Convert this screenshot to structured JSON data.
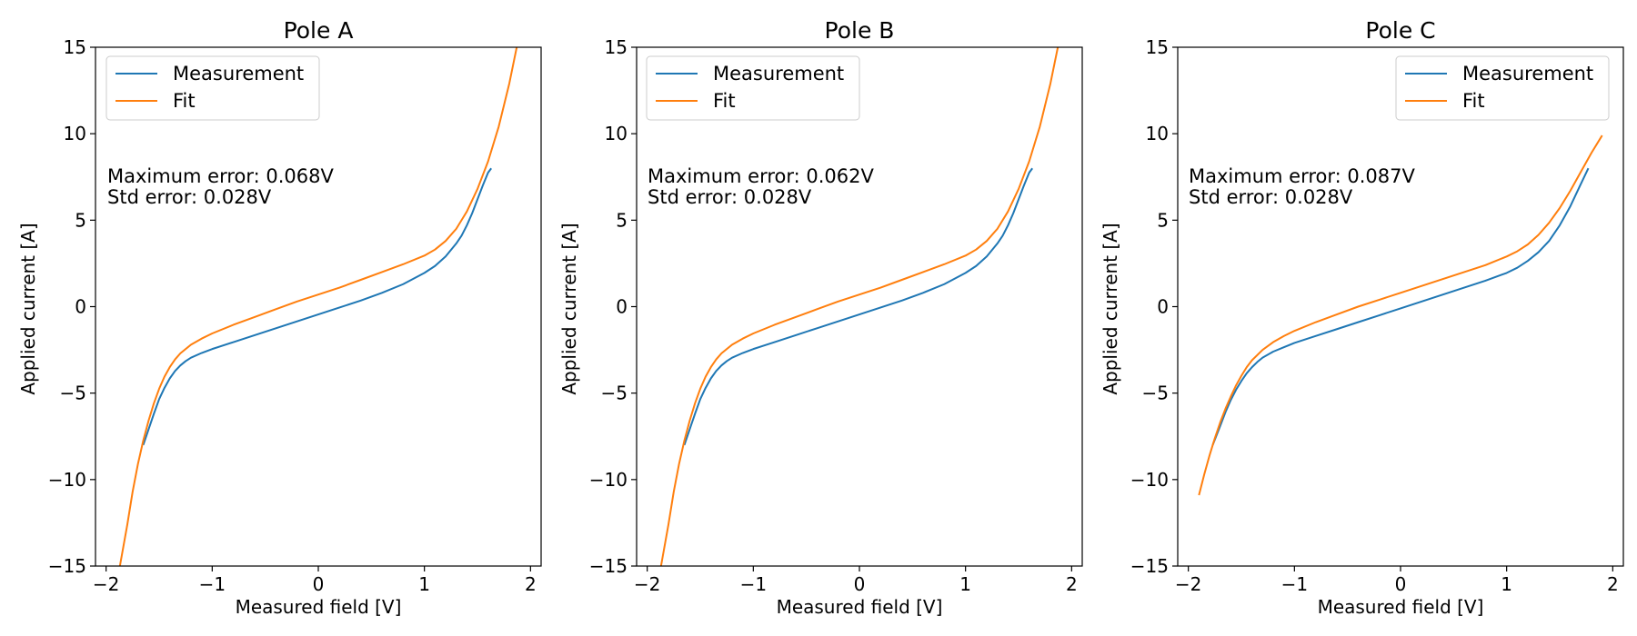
{
  "colors": {
    "measurement": "#1f77b4",
    "fit": "#ff7f0e",
    "axes": "#000000",
    "legend_border": "#cccccc",
    "background": "#ffffff"
  },
  "chart_data": [
    {
      "type": "line",
      "title": "Pole A",
      "xlabel": "Measured field [V]",
      "ylabel": "Applied current [A]",
      "xlim": [
        -2.1,
        2.1
      ],
      "ylim": [
        -15,
        15
      ],
      "xticks": [
        -2,
        -1,
        0,
        1,
        2
      ],
      "yticks": [
        -15,
        -10,
        -5,
        0,
        5,
        10,
        15
      ],
      "xtick_labels": [
        "−2",
        "−1",
        "0",
        "1",
        "2"
      ],
      "ytick_labels": [
        "−15",
        "−10",
        "−5",
        "0",
        "5",
        "10",
        "15"
      ],
      "grid": false,
      "legend_position": "upper left",
      "annotation": [
        "Maximum error: 0.068V",
        "Std error: 0.028V"
      ],
      "series": [
        {
          "name": "Measurement",
          "color": "#1f77b4",
          "x": [
            -1.65,
            -1.6,
            -1.55,
            -1.5,
            -1.45,
            -1.4,
            -1.35,
            -1.3,
            -1.25,
            -1.2,
            -1.1,
            -1.0,
            -0.8,
            -0.6,
            -0.4,
            -0.2,
            0.0,
            0.2,
            0.4,
            0.6,
            0.8,
            1.0,
            1.1,
            1.2,
            1.3,
            1.35,
            1.4,
            1.45,
            1.5,
            1.55,
            1.6,
            1.63
          ],
          "y": [
            -8.0,
            -7.1,
            -6.2,
            -5.35,
            -4.7,
            -4.15,
            -3.72,
            -3.4,
            -3.15,
            -2.95,
            -2.68,
            -2.45,
            -2.05,
            -1.65,
            -1.25,
            -0.85,
            -0.45,
            -0.05,
            0.35,
            0.8,
            1.3,
            1.95,
            2.35,
            2.9,
            3.65,
            4.1,
            4.7,
            5.4,
            6.2,
            7.0,
            7.75,
            8.0
          ]
        },
        {
          "name": "Fit",
          "color": "#ff7f0e",
          "x": [
            -1.87,
            -1.8,
            -1.75,
            -1.7,
            -1.65,
            -1.6,
            -1.55,
            -1.5,
            -1.45,
            -1.4,
            -1.35,
            -1.3,
            -1.2,
            -1.1,
            -1.0,
            -0.8,
            -0.6,
            -0.4,
            -0.2,
            0.0,
            0.2,
            0.4,
            0.6,
            0.8,
            1.0,
            1.1,
            1.2,
            1.3,
            1.4,
            1.5,
            1.6,
            1.7,
            1.8,
            1.87
          ],
          "y": [
            -15.0,
            -12.6,
            -10.7,
            -9.1,
            -7.75,
            -6.6,
            -5.6,
            -4.75,
            -4.05,
            -3.5,
            -3.05,
            -2.7,
            -2.2,
            -1.85,
            -1.55,
            -1.05,
            -0.6,
            -0.15,
            0.3,
            0.7,
            1.1,
            1.55,
            2.0,
            2.45,
            2.95,
            3.3,
            3.8,
            4.5,
            5.5,
            6.8,
            8.4,
            10.4,
            12.9,
            15.0
          ]
        }
      ]
    },
    {
      "type": "line",
      "title": "Pole B",
      "xlabel": "Measured field [V]",
      "ylabel": "Applied current [A]",
      "xlim": [
        -2.1,
        2.1
      ],
      "ylim": [
        -15,
        15
      ],
      "xticks": [
        -2,
        -1,
        0,
        1,
        2
      ],
      "yticks": [
        -15,
        -10,
        -5,
        0,
        5,
        10,
        15
      ],
      "xtick_labels": [
        "−2",
        "−1",
        "0",
        "1",
        "2"
      ],
      "ytick_labels": [
        "−15",
        "−10",
        "−5",
        "0",
        "5",
        "10",
        "15"
      ],
      "grid": false,
      "legend_position": "upper left",
      "annotation": [
        "Maximum error: 0.062V",
        "Std error: 0.028V"
      ],
      "series": [
        {
          "name": "Measurement",
          "color": "#1f77b4",
          "x": [
            -1.65,
            -1.6,
            -1.55,
            -1.5,
            -1.45,
            -1.4,
            -1.35,
            -1.3,
            -1.25,
            -1.2,
            -1.1,
            -1.0,
            -0.8,
            -0.6,
            -0.4,
            -0.2,
            0.0,
            0.2,
            0.4,
            0.6,
            0.8,
            1.0,
            1.1,
            1.2,
            1.3,
            1.35,
            1.4,
            1.45,
            1.5,
            1.55,
            1.6,
            1.63
          ],
          "y": [
            -8.0,
            -7.1,
            -6.2,
            -5.35,
            -4.7,
            -4.15,
            -3.72,
            -3.4,
            -3.15,
            -2.95,
            -2.68,
            -2.45,
            -2.05,
            -1.65,
            -1.25,
            -0.85,
            -0.45,
            -0.05,
            0.35,
            0.8,
            1.3,
            1.95,
            2.35,
            2.9,
            3.65,
            4.1,
            4.7,
            5.4,
            6.2,
            7.0,
            7.75,
            8.0
          ]
        },
        {
          "name": "Fit",
          "color": "#ff7f0e",
          "x": [
            -1.87,
            -1.8,
            -1.75,
            -1.7,
            -1.65,
            -1.6,
            -1.55,
            -1.5,
            -1.45,
            -1.4,
            -1.35,
            -1.3,
            -1.2,
            -1.1,
            -1.0,
            -0.8,
            -0.6,
            -0.4,
            -0.2,
            0.0,
            0.2,
            0.4,
            0.6,
            0.8,
            1.0,
            1.1,
            1.2,
            1.3,
            1.4,
            1.5,
            1.6,
            1.7,
            1.8,
            1.87
          ],
          "y": [
            -15.0,
            -12.6,
            -10.7,
            -9.1,
            -7.75,
            -6.6,
            -5.6,
            -4.75,
            -4.05,
            -3.5,
            -3.05,
            -2.7,
            -2.2,
            -1.85,
            -1.55,
            -1.05,
            -0.6,
            -0.15,
            0.3,
            0.7,
            1.1,
            1.55,
            2.0,
            2.45,
            2.95,
            3.3,
            3.8,
            4.5,
            5.5,
            6.8,
            8.4,
            10.4,
            12.9,
            15.0
          ]
        }
      ]
    },
    {
      "type": "line",
      "title": "Pole C",
      "xlabel": "Measured field [V]",
      "ylabel": "Applied current [A]",
      "xlim": [
        -2.1,
        2.1
      ],
      "ylim": [
        -15,
        15
      ],
      "xticks": [
        -2,
        -1,
        0,
        1,
        2
      ],
      "yticks": [
        -15,
        -10,
        -5,
        0,
        5,
        10,
        15
      ],
      "xtick_labels": [
        "−2",
        "−1",
        "0",
        "1",
        "2"
      ],
      "ytick_labels": [
        "−15",
        "−10",
        "−5",
        "0",
        "5",
        "10",
        "15"
      ],
      "grid": false,
      "legend_position": "upper right",
      "annotation": [
        "Maximum error: 0.087V",
        "Std error: 0.028V"
      ],
      "series": [
        {
          "name": "Measurement",
          "color": "#1f77b4",
          "x": [
            -1.77,
            -1.7,
            -1.65,
            -1.6,
            -1.55,
            -1.5,
            -1.45,
            -1.4,
            -1.35,
            -1.3,
            -1.2,
            -1.1,
            -1.0,
            -0.8,
            -0.6,
            -0.4,
            -0.2,
            0.0,
            0.2,
            0.4,
            0.6,
            0.8,
            1.0,
            1.1,
            1.2,
            1.3,
            1.4,
            1.5,
            1.6,
            1.7,
            1.77
          ],
          "y": [
            -8.0,
            -6.9,
            -6.1,
            -5.4,
            -4.8,
            -4.3,
            -3.85,
            -3.5,
            -3.2,
            -2.95,
            -2.6,
            -2.35,
            -2.1,
            -1.7,
            -1.3,
            -0.9,
            -0.5,
            -0.1,
            0.3,
            0.7,
            1.1,
            1.5,
            1.95,
            2.25,
            2.65,
            3.15,
            3.8,
            4.7,
            5.8,
            7.1,
            8.0
          ]
        },
        {
          "name": "Fit",
          "color": "#ff7f0e",
          "x": [
            -1.9,
            -1.85,
            -1.8,
            -1.75,
            -1.7,
            -1.65,
            -1.6,
            -1.55,
            -1.5,
            -1.45,
            -1.4,
            -1.3,
            -1.2,
            -1.1,
            -1.0,
            -0.8,
            -0.6,
            -0.4,
            -0.2,
            0.0,
            0.2,
            0.4,
            0.6,
            0.8,
            1.0,
            1.1,
            1.2,
            1.3,
            1.4,
            1.5,
            1.6,
            1.7,
            1.8,
            1.9
          ],
          "y": [
            -10.9,
            -9.7,
            -8.6,
            -7.6,
            -6.7,
            -5.9,
            -5.2,
            -4.55,
            -4.0,
            -3.5,
            -3.1,
            -2.5,
            -2.05,
            -1.7,
            -1.4,
            -0.9,
            -0.45,
            0.0,
            0.4,
            0.8,
            1.2,
            1.6,
            2.0,
            2.4,
            2.9,
            3.2,
            3.6,
            4.15,
            4.85,
            5.7,
            6.7,
            7.8,
            8.9,
            9.9
          ]
        }
      ]
    }
  ]
}
